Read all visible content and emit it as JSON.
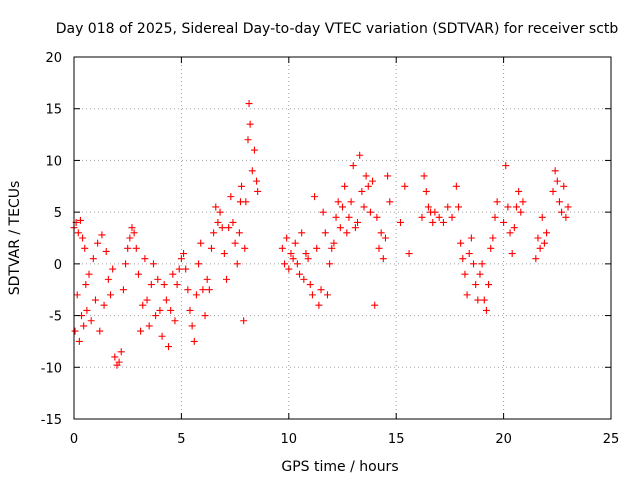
{
  "chart_data": {
    "type": "scatter",
    "title": "Day 018 of 2025, Sidereal Day-to-day VTEC variation (SDTVAR) for receiver sctb",
    "xlabel": "GPS time / hours",
    "ylabel": "SDTVAR / TECUs",
    "xlim": [
      0,
      25
    ],
    "ylim": [
      -15,
      20
    ],
    "xticks": [
      "0",
      "5",
      "10",
      "15",
      "20",
      "25"
    ],
    "yticks": [
      "20",
      "15",
      "10",
      "5",
      "0",
      "-5",
      "-10",
      "-15"
    ],
    "xtick_values": [
      0,
      5,
      10,
      15,
      20,
      25
    ],
    "ytick_values": [
      20,
      15,
      10,
      5,
      0,
      -5,
      -10,
      -15
    ],
    "grid": true,
    "marker": "+",
    "marker_color": "#ff0000",
    "series": [
      {
        "name": "SDTVAR",
        "points": [
          [
            0.0,
            3.5
          ],
          [
            0.05,
            -6.5
          ],
          [
            0.1,
            4.0
          ],
          [
            0.15,
            -3.0
          ],
          [
            0.2,
            3.0
          ],
          [
            0.25,
            -7.5
          ],
          [
            0.3,
            4.2
          ],
          [
            0.35,
            -5.0
          ],
          [
            0.4,
            2.5
          ],
          [
            0.45,
            -6.0
          ],
          [
            0.5,
            1.5
          ],
          [
            0.55,
            -2.0
          ],
          [
            0.6,
            -4.5
          ],
          [
            0.7,
            -1.0
          ],
          [
            0.8,
            -5.5
          ],
          [
            0.9,
            0.5
          ],
          [
            1.0,
            -3.5
          ],
          [
            1.1,
            2.0
          ],
          [
            1.2,
            -6.5
          ],
          [
            1.3,
            2.8
          ],
          [
            1.4,
            -4.0
          ],
          [
            1.5,
            1.2
          ],
          [
            1.6,
            -1.5
          ],
          [
            1.7,
            -3.0
          ],
          [
            1.8,
            -0.5
          ],
          [
            1.9,
            -9.0
          ],
          [
            2.0,
            -9.8
          ],
          [
            2.1,
            -9.5
          ],
          [
            2.2,
            -8.5
          ],
          [
            2.3,
            -2.5
          ],
          [
            2.4,
            0.0
          ],
          [
            2.5,
            1.5
          ],
          [
            2.6,
            2.5
          ],
          [
            2.7,
            3.5
          ],
          [
            2.8,
            3.0
          ],
          [
            2.9,
            1.5
          ],
          [
            3.0,
            -1.0
          ],
          [
            3.1,
            -6.5
          ],
          [
            3.2,
            -4.0
          ],
          [
            3.3,
            0.5
          ],
          [
            3.4,
            -3.5
          ],
          [
            3.5,
            -6.0
          ],
          [
            3.6,
            -2.0
          ],
          [
            3.7,
            0.0
          ],
          [
            3.8,
            -5.0
          ],
          [
            3.9,
            -1.5
          ],
          [
            4.0,
            -4.5
          ],
          [
            4.1,
            -7.0
          ],
          [
            4.2,
            -2.0
          ],
          [
            4.3,
            -3.5
          ],
          [
            4.4,
            -8.0
          ],
          [
            4.5,
            -4.5
          ],
          [
            4.6,
            -1.0
          ],
          [
            4.7,
            -5.5
          ],
          [
            4.8,
            -2.0
          ],
          [
            4.9,
            -0.5
          ],
          [
            5.0,
            0.5
          ],
          [
            5.1,
            1.0
          ],
          [
            5.2,
            -0.5
          ],
          [
            5.3,
            -2.5
          ],
          [
            5.4,
            -4.5
          ],
          [
            5.5,
            -6.0
          ],
          [
            5.6,
            -7.5
          ],
          [
            5.7,
            -3.0
          ],
          [
            5.8,
            0.0
          ],
          [
            5.9,
            2.0
          ],
          [
            6.0,
            -2.5
          ],
          [
            6.1,
            -5.0
          ],
          [
            6.2,
            -1.5
          ],
          [
            6.3,
            -2.5
          ],
          [
            6.4,
            1.5
          ],
          [
            6.5,
            3.0
          ],
          [
            6.6,
            5.5
          ],
          [
            6.7,
            4.0
          ],
          [
            6.8,
            5.0
          ],
          [
            6.9,
            3.5
          ],
          [
            7.0,
            1.0
          ],
          [
            7.1,
            -1.5
          ],
          [
            7.2,
            3.5
          ],
          [
            7.3,
            6.5
          ],
          [
            7.4,
            4.0
          ],
          [
            7.5,
            2.0
          ],
          [
            7.6,
            0.0
          ],
          [
            7.7,
            3.0
          ],
          [
            7.75,
            6.0
          ],
          [
            7.8,
            7.5
          ],
          [
            7.9,
            -5.5
          ],
          [
            7.95,
            1.5
          ],
          [
            8.0,
            6.0
          ],
          [
            8.1,
            12.0
          ],
          [
            8.15,
            15.5
          ],
          [
            8.2,
            13.5
          ],
          [
            8.3,
            9.0
          ],
          [
            8.4,
            11.0
          ],
          [
            8.5,
            8.0
          ],
          [
            8.55,
            7.0
          ],
          [
            9.7,
            1.5
          ],
          [
            9.8,
            0.0
          ],
          [
            9.9,
            2.5
          ],
          [
            10.0,
            -0.5
          ],
          [
            10.1,
            1.0
          ],
          [
            10.2,
            0.5
          ],
          [
            10.3,
            2.0
          ],
          [
            10.4,
            0.0
          ],
          [
            10.5,
            -1.0
          ],
          [
            10.6,
            3.0
          ],
          [
            10.7,
            -1.5
          ],
          [
            10.8,
            1.0
          ],
          [
            10.9,
            0.5
          ],
          [
            11.0,
            -2.0
          ],
          [
            11.1,
            -3.0
          ],
          [
            11.2,
            6.5
          ],
          [
            11.3,
            1.5
          ],
          [
            11.4,
            -4.0
          ],
          [
            11.5,
            -2.5
          ],
          [
            11.6,
            5.0
          ],
          [
            11.7,
            3.0
          ],
          [
            11.8,
            -3.0
          ],
          [
            11.9,
            0.0
          ],
          [
            12.0,
            1.5
          ],
          [
            12.1,
            2.0
          ],
          [
            12.2,
            4.5
          ],
          [
            12.3,
            6.0
          ],
          [
            12.4,
            3.5
          ],
          [
            12.5,
            5.5
          ],
          [
            12.6,
            7.5
          ],
          [
            12.7,
            3.0
          ],
          [
            12.8,
            4.5
          ],
          [
            12.9,
            6.0
          ],
          [
            13.0,
            9.5
          ],
          [
            13.1,
            3.5
          ],
          [
            13.2,
            4.0
          ],
          [
            13.3,
            10.5
          ],
          [
            13.4,
            7.0
          ],
          [
            13.5,
            5.5
          ],
          [
            13.6,
            8.5
          ],
          [
            13.7,
            7.5
          ],
          [
            13.8,
            5.0
          ],
          [
            13.9,
            8.0
          ],
          [
            14.0,
            -4.0
          ],
          [
            14.1,
            4.5
          ],
          [
            14.2,
            1.5
          ],
          [
            14.3,
            3.0
          ],
          [
            14.4,
            0.5
          ],
          [
            14.5,
            2.5
          ],
          [
            14.6,
            8.5
          ],
          [
            14.7,
            6.0
          ],
          [
            15.2,
            4.0
          ],
          [
            15.4,
            7.5
          ],
          [
            15.6,
            1.0
          ],
          [
            16.2,
            4.5
          ],
          [
            16.3,
            8.5
          ],
          [
            16.4,
            7.0
          ],
          [
            16.5,
            5.5
          ],
          [
            16.6,
            5.0
          ],
          [
            16.7,
            4.0
          ],
          [
            16.8,
            5.0
          ],
          [
            17.0,
            4.5
          ],
          [
            17.2,
            4.0
          ],
          [
            17.4,
            5.5
          ],
          [
            17.6,
            4.5
          ],
          [
            17.8,
            7.5
          ],
          [
            17.9,
            5.5
          ],
          [
            18.0,
            2.0
          ],
          [
            18.1,
            0.5
          ],
          [
            18.2,
            -1.0
          ],
          [
            18.3,
            -3.0
          ],
          [
            18.4,
            1.0
          ],
          [
            18.5,
            2.5
          ],
          [
            18.6,
            0.0
          ],
          [
            18.7,
            -2.0
          ],
          [
            18.8,
            -3.5
          ],
          [
            18.9,
            -1.0
          ],
          [
            19.0,
            0.0
          ],
          [
            19.1,
            -3.5
          ],
          [
            19.2,
            -4.5
          ],
          [
            19.3,
            -2.0
          ],
          [
            19.4,
            1.5
          ],
          [
            19.5,
            2.5
          ],
          [
            19.6,
            4.5
          ],
          [
            19.7,
            6.0
          ],
          [
            20.0,
            4.0
          ],
          [
            20.1,
            9.5
          ],
          [
            20.2,
            5.5
          ],
          [
            20.3,
            3.0
          ],
          [
            20.4,
            1.0
          ],
          [
            20.5,
            3.5
          ],
          [
            20.6,
            5.5
          ],
          [
            20.7,
            7.0
          ],
          [
            20.8,
            5.0
          ],
          [
            20.9,
            6.0
          ],
          [
            21.5,
            0.5
          ],
          [
            21.6,
            2.5
          ],
          [
            21.7,
            1.5
          ],
          [
            21.8,
            4.5
          ],
          [
            21.9,
            2.0
          ],
          [
            22.0,
            3.0
          ],
          [
            22.3,
            7.0
          ],
          [
            22.4,
            9.0
          ],
          [
            22.5,
            8.0
          ],
          [
            22.6,
            6.0
          ],
          [
            22.7,
            5.0
          ],
          [
            22.8,
            7.5
          ],
          [
            22.9,
            4.5
          ],
          [
            23.0,
            5.5
          ]
        ]
      }
    ]
  }
}
